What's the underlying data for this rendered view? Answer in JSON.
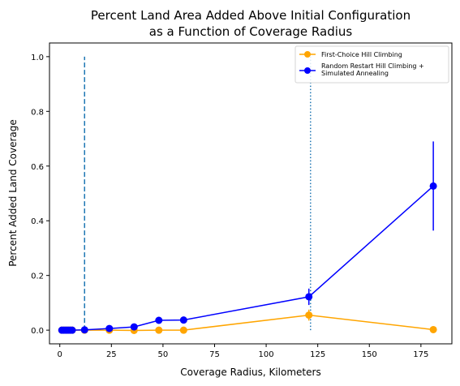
{
  "chart_data": {
    "type": "line",
    "title": [
      "Percent Land Area Added Above Initial Configuration",
      "as a Function of Coverage Radius"
    ],
    "xlabel": "Coverage Radius, Kilometers",
    "ylabel": "Percent Added Land Coverage",
    "xlim": [
      -5,
      190
    ],
    "ylim": [
      -0.05,
      1.05
    ],
    "xticks": [
      0,
      25,
      50,
      75,
      100,
      125,
      150,
      175
    ],
    "yticks": [
      0.0,
      0.2,
      0.4,
      0.6,
      0.8,
      1.0
    ],
    "xtick_labels": [
      "0",
      "25",
      "50",
      "75",
      "100",
      "125",
      "150",
      "175"
    ],
    "ytick_labels": [
      "0.0",
      "0.2",
      "0.4",
      "0.6",
      "0.8",
      "1.0"
    ],
    "legend_position": "top-right",
    "series": [
      {
        "name": "First-Choice Hill Climbing",
        "color": "#ffa500",
        "x": [
          1,
          2,
          3,
          4,
          5,
          6,
          12,
          24,
          36,
          48,
          60,
          120.7,
          181
        ],
        "y": [
          0.0,
          0.0,
          0.0,
          0.0,
          0.0,
          0.0,
          0.0,
          0.0,
          -0.001,
          0.0,
          0.0,
          0.055,
          0.002
        ],
        "err": [
          0,
          0,
          0,
          0,
          0,
          0,
          0,
          0,
          0,
          0,
          0,
          0.02,
          0.0
        ]
      },
      {
        "name": "Random Restart Hill Climbing +\nSimulated Annealing",
        "color": "#0000ff",
        "x": [
          1,
          2,
          3,
          4,
          5,
          6,
          12,
          24,
          36,
          48,
          60,
          120.7,
          181
        ],
        "y": [
          0.0,
          0.0,
          0.0,
          0.0,
          0.0,
          0.0,
          0.001,
          0.006,
          0.012,
          0.036,
          0.037,
          0.122,
          0.527
        ],
        "err": [
          0,
          0,
          0,
          0,
          0,
          0,
          0,
          0,
          0,
          0,
          0,
          0.03,
          0.163
        ]
      }
    ],
    "vlines": [
      {
        "x": 12,
        "y0": 0.0,
        "y1": 1.0,
        "style": "dashed",
        "color": "#1f77b4"
      },
      {
        "x": 121.5,
        "y0": 0.0,
        "y1": 1.0,
        "style": "dotted",
        "color": "#1f77b4"
      }
    ]
  }
}
